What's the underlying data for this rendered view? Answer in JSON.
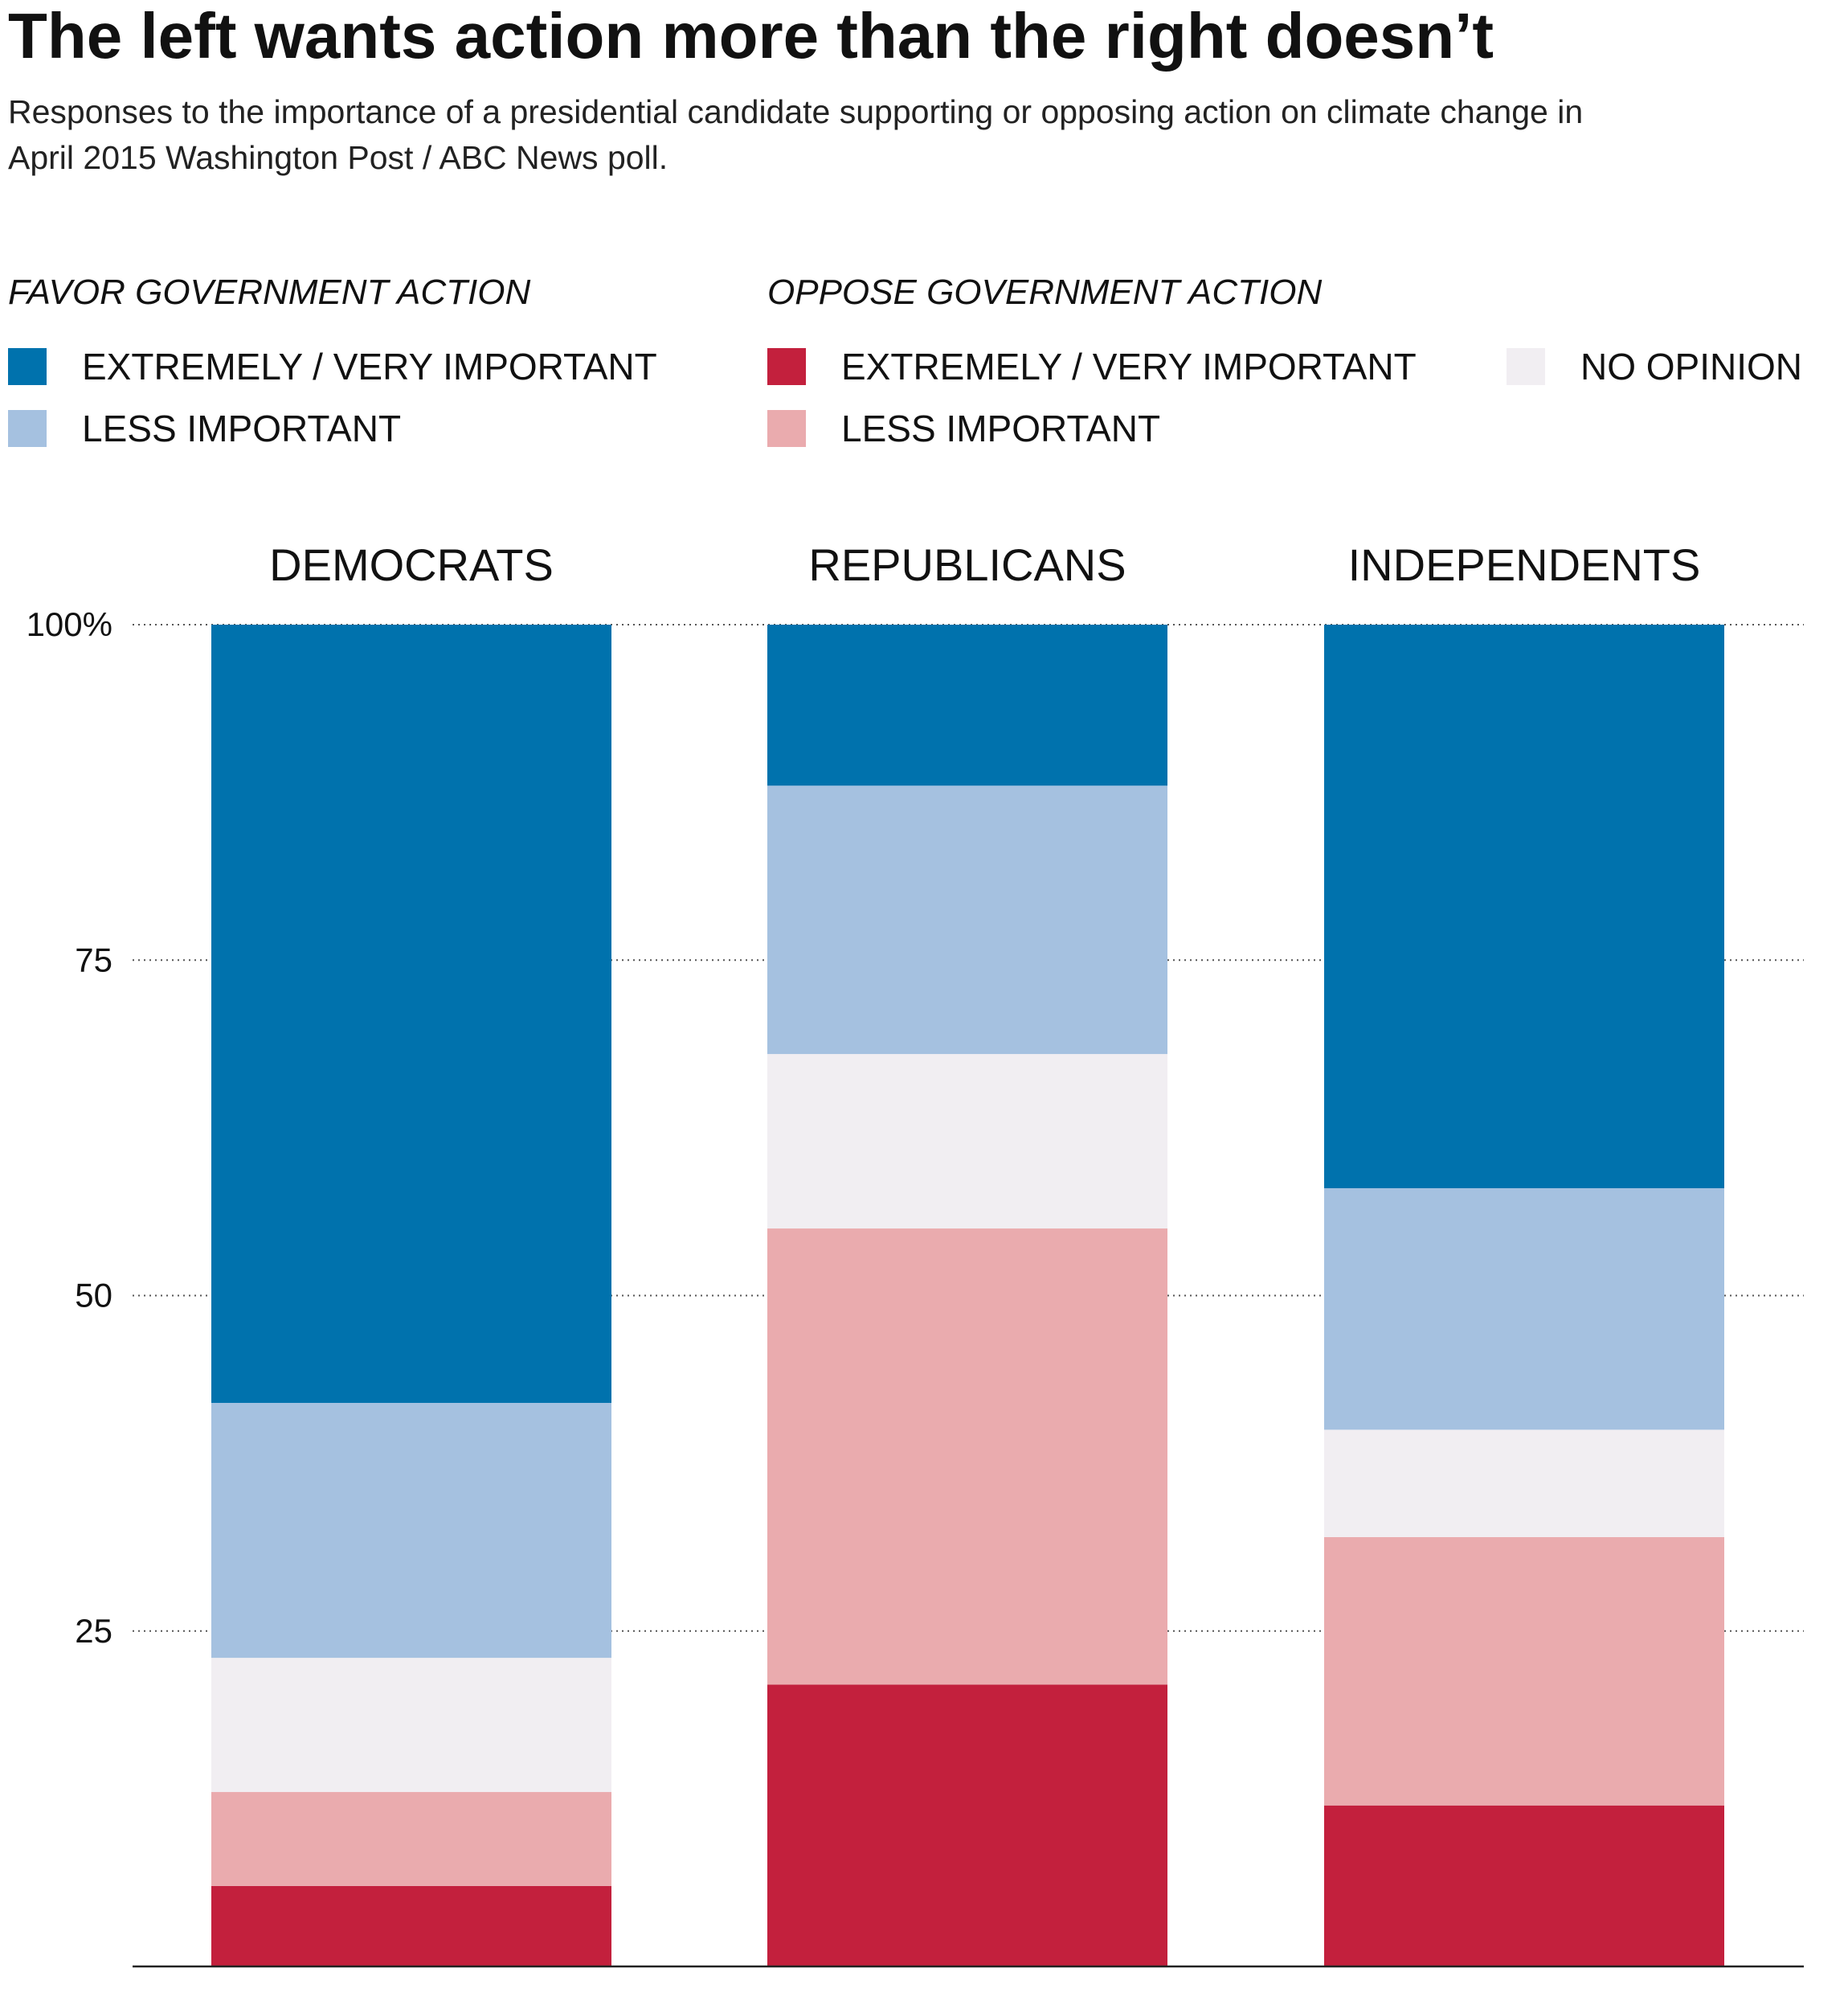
{
  "chart_data": {
    "type": "bar",
    "stacked": true,
    "title": "The left wants action more than the right doesn’t",
    "subtitle": "Responses to the importance of a presidential candidate supporting or opposing action on climate change in April 2015 Washington Post / ABC News poll.",
    "legend": {
      "placement": "top",
      "groups": [
        {
          "heading": "FAVOR GOVERNMENT ACTION",
          "items": [
            {
              "label": "EXTREMELY / VERY IMPORTANT",
              "color": "#0072ad"
            },
            {
              "label": "LESS IMPORTANT",
              "color": "#a5c1e0"
            }
          ]
        },
        {
          "heading": "OPPOSE GOVERNMENT ACTION",
          "items": [
            {
              "label": "EXTREMELY / VERY IMPORTANT",
              "color": "#c3203d"
            },
            {
              "label": "LESS IMPORTANT",
              "color": "#eaabae"
            }
          ]
        },
        {
          "heading": "",
          "items": [
            {
              "label": "NO OPINION",
              "color": "#f1eef2"
            }
          ]
        }
      ]
    },
    "categories": [
      "DEMOCRATS",
      "REPUBLICANS",
      "INDEPENDENTS"
    ],
    "series": [
      {
        "key": "oppose_extremely",
        "color": "#c3203d",
        "values": [
          6,
          21,
          12
        ]
      },
      {
        "key": "oppose_less",
        "color": "#eaabae",
        "values": [
          7,
          34,
          20
        ]
      },
      {
        "key": "no_opinion",
        "color": "#f1eef2",
        "values": [
          10,
          13,
          8
        ]
      },
      {
        "key": "favor_less",
        "color": "#a5c1e0",
        "values": [
          19,
          20,
          18
        ]
      },
      {
        "key": "favor_extremely",
        "color": "#0072ad",
        "values": [
          58,
          12,
          42
        ]
      }
    ],
    "yticks": [
      {
        "value": 100,
        "label": "100%"
      },
      {
        "value": 75,
        "label": "75"
      },
      {
        "value": 50,
        "label": "50"
      },
      {
        "value": 25,
        "label": "25"
      }
    ],
    "ylim": [
      0,
      100
    ],
    "grid": true,
    "xlabel": "",
    "ylabel": ""
  }
}
